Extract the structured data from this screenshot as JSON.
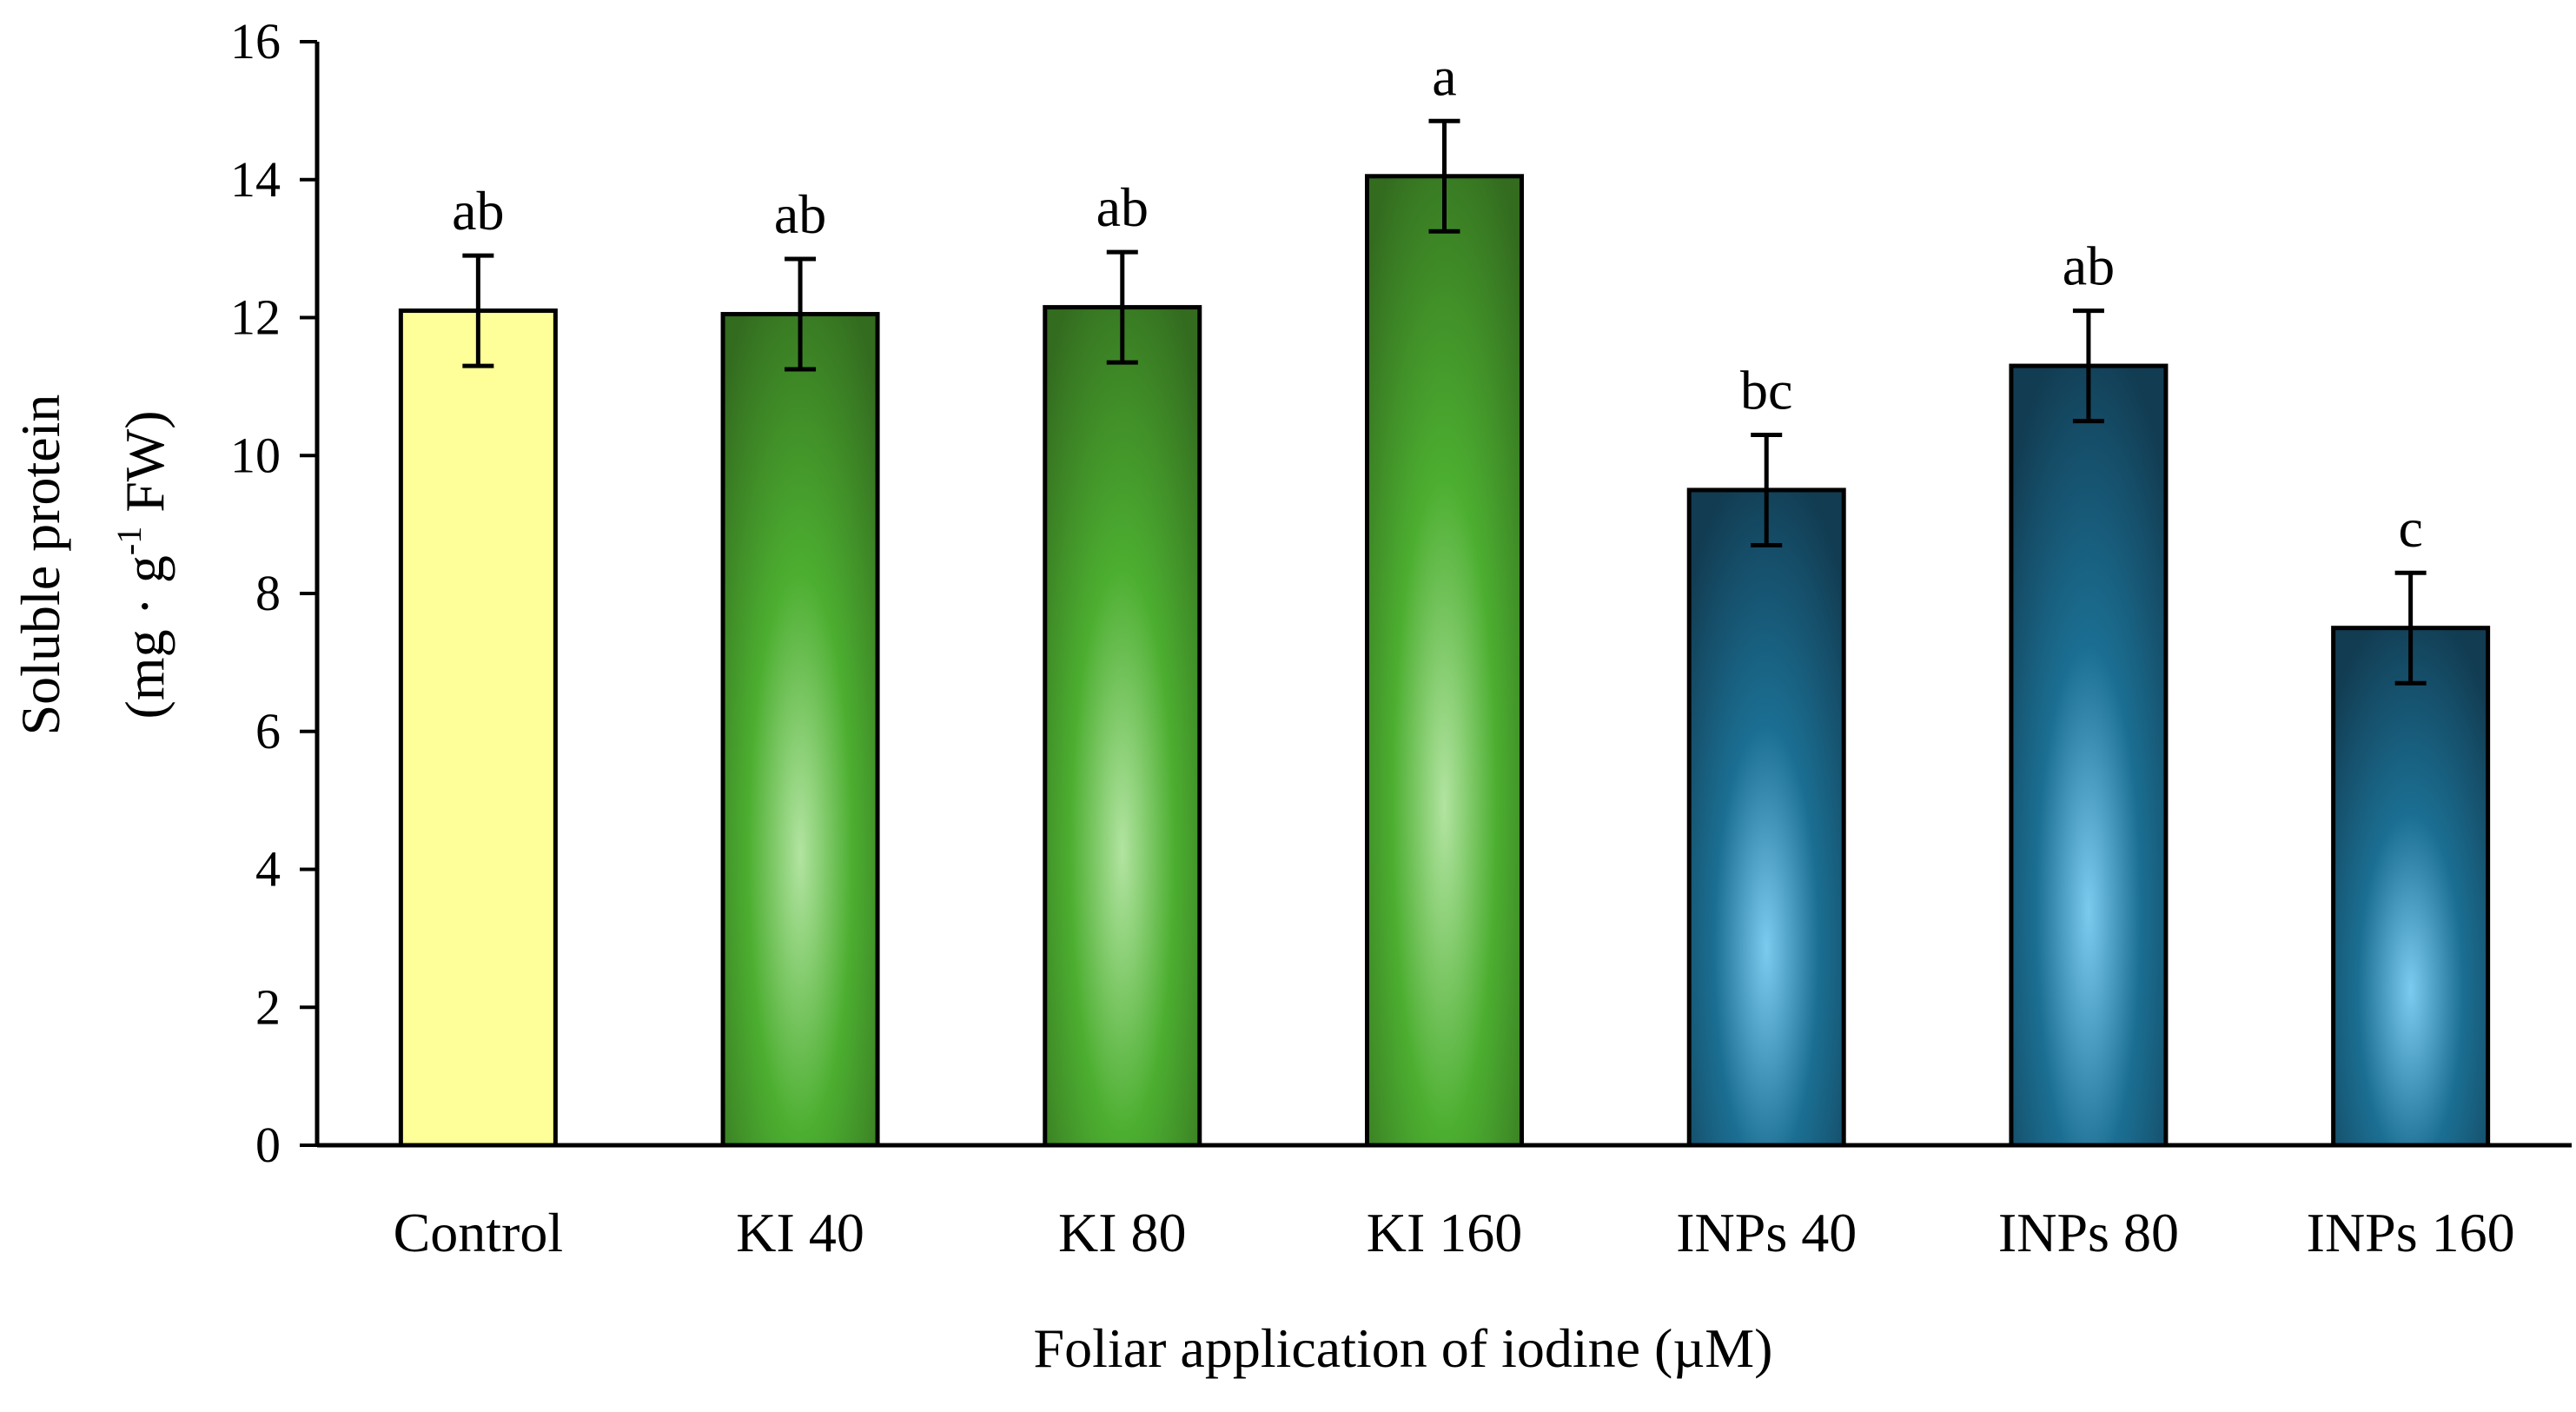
{
  "chart_data": {
    "type": "bar",
    "title": "",
    "xlabel": "Foliar application of iodine (µM)",
    "ylabel": {
      "line1": "Soluble protein",
      "line2_prefix": "(mg · g",
      "line2_sup": "-1",
      "line2_suffix": " FW)"
    },
    "ylim": [
      0,
      16
    ],
    "yticks": [
      0,
      2,
      4,
      6,
      8,
      10,
      12,
      14,
      16
    ],
    "grid": false,
    "legend": "none",
    "categories": [
      "Control",
      "KI 40",
      "KI 80",
      "KI 160",
      "INPs 40",
      "INPs 80",
      "INPs 160"
    ],
    "values": [
      12.1,
      12.05,
      12.15,
      14.05,
      9.5,
      11.3,
      7.5
    ],
    "errors": [
      0.8,
      0.8,
      0.8,
      0.8,
      0.8,
      0.8,
      0.8
    ],
    "significance": [
      "ab",
      "ab",
      "ab",
      "a",
      "bc",
      "ab",
      "c"
    ],
    "bar_groups": [
      "control",
      "ki",
      "ki",
      "ki",
      "inp",
      "inp",
      "inp"
    ],
    "colors": {
      "control": "#ffff99",
      "ki_outer": "#336b1f",
      "ki_mid": "#4cae30",
      "ki_center": "#b2e4a1",
      "inp_outer": "#123c52",
      "inp_mid": "#1b6f93",
      "inp_center": "#7bcbef",
      "axis": "#000000"
    }
  }
}
